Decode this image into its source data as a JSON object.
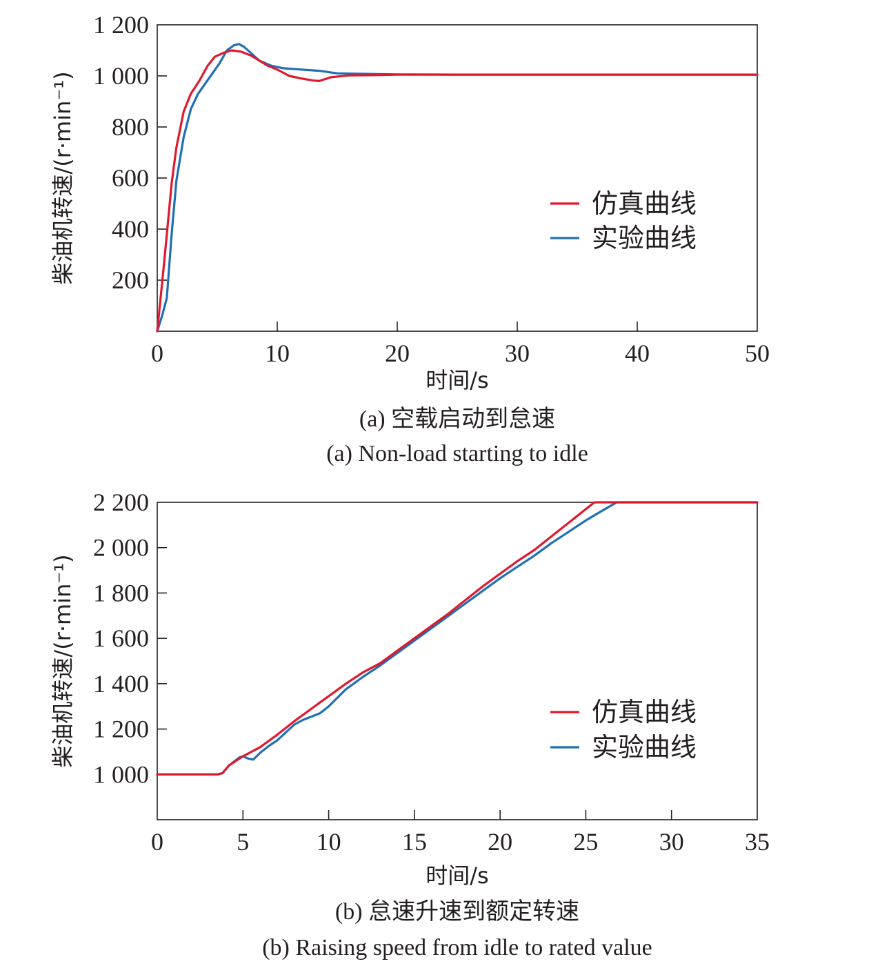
{
  "colors": {
    "sim": "#e0182d",
    "exp": "#1f6fb5"
  },
  "chart_data": [
    {
      "type": "line",
      "xlabel": "时间/s",
      "ylabel": "柴油机转速/(r·min⁻¹)",
      "xlim": [
        0,
        50
      ],
      "ylim": [
        0,
        1200
      ],
      "xticks": [
        0,
        10,
        20,
        30,
        40,
        50
      ],
      "xtick_labels": [
        "0",
        "10",
        "20",
        "30",
        "40",
        "50"
      ],
      "yticks": [
        200,
        400,
        600,
        800,
        1000,
        1200
      ],
      "ytick_labels": [
        "200",
        "400",
        "600",
        "800",
        "1 000",
        "1 200"
      ],
      "legend_position": "right",
      "caption_cn": "(a) 空载启动到怠速",
      "caption_en": "(a) Non-load starting to idle",
      "series": [
        {
          "name": "仿真曲线",
          "color": "#e0182d",
          "x": [
            0,
            0.6,
            1.2,
            1.6,
            2.2,
            2.8,
            3.5,
            4.2,
            4.8,
            5.5,
            6.2,
            7.0,
            7.8,
            8.5,
            9.2,
            10.0,
            11.0,
            12.0,
            13.0,
            13.5,
            14.5,
            16.0,
            18.0,
            20.0,
            25.0,
            30.0,
            40.0,
            50.0
          ],
          "y": [
            0,
            280,
            580,
            720,
            860,
            930,
            980,
            1040,
            1075,
            1090,
            1100,
            1095,
            1080,
            1060,
            1040,
            1025,
            1000,
            990,
            982,
            980,
            995,
            1002,
            1003,
            1005,
            1005,
            1005,
            1005,
            1005
          ]
        },
        {
          "name": "实验曲线",
          "color": "#1f6fb5",
          "x": [
            0,
            0.4,
            0.8,
            1.2,
            1.6,
            2.2,
            2.8,
            3.4,
            4.0,
            4.6,
            5.2,
            5.8,
            6.4,
            6.8,
            7.2,
            7.8,
            8.5,
            9.5,
            10.5,
            12.0,
            13.5,
            15.0,
            17.0,
            20.0,
            25.0,
            30.0,
            40.0,
            50.0
          ],
          "y": [
            0,
            60,
            130,
            380,
            590,
            760,
            870,
            930,
            970,
            1010,
            1050,
            1100,
            1120,
            1125,
            1115,
            1090,
            1060,
            1040,
            1030,
            1025,
            1020,
            1010,
            1008,
            1006,
            1005,
            1005,
            1005,
            1005
          ]
        }
      ]
    },
    {
      "type": "line",
      "xlabel": "时间/s",
      "ylabel": "柴油机转速/(r·min⁻¹)",
      "xlim": [
        0,
        35
      ],
      "ylim": [
        800,
        2200
      ],
      "xticks": [
        0,
        5,
        10,
        15,
        20,
        25,
        30,
        35
      ],
      "xtick_labels": [
        "0",
        "5",
        "10",
        "15",
        "20",
        "25",
        "30",
        "35"
      ],
      "yticks": [
        1000,
        1200,
        1400,
        1600,
        1800,
        2000,
        2200
      ],
      "ytick_labels": [
        "1 000",
        "1 200",
        "1 400",
        "1 600",
        "1 800",
        "2 000",
        "2 200"
      ],
      "legend_position": "right",
      "caption_cn": "(b) 怠速升速到额定转速",
      "caption_en": "(b) Raising speed from idle to rated value",
      "series": [
        {
          "name": "仿真曲线",
          "color": "#e0182d",
          "x": [
            0,
            3.5,
            3.8,
            4.2,
            5.0,
            6.0,
            7.0,
            8.0,
            9.0,
            10.0,
            11.0,
            12.0,
            13.0,
            14.0,
            15.0,
            16.0,
            17.0,
            18.0,
            19.0,
            20.0,
            21.0,
            22.0,
            23.0,
            24.0,
            25.0,
            25.5,
            26.0,
            27.0,
            30.0,
            35.0
          ],
          "y": [
            1000,
            1000,
            1005,
            1040,
            1080,
            1120,
            1175,
            1235,
            1290,
            1345,
            1400,
            1450,
            1490,
            1545,
            1600,
            1655,
            1710,
            1770,
            1830,
            1885,
            1940,
            1990,
            2050,
            2110,
            2170,
            2200,
            2200,
            2200,
            2200,
            2200
          ]
        },
        {
          "name": "实验曲线",
          "color": "#1f6fb5",
          "x": [
            0,
            3.5,
            3.8,
            4.2,
            4.8,
            5.0,
            5.3,
            5.6,
            6.0,
            6.5,
            7.0,
            7.5,
            8.0,
            8.5,
            9.0,
            9.5,
            10.0,
            11.0,
            12.0,
            13.0,
            14.0,
            15.0,
            16.0,
            17.0,
            18.0,
            19.0,
            20.0,
            21.0,
            22.0,
            23.0,
            24.0,
            25.0,
            26.0,
            26.8,
            27.5,
            30.0,
            35.0
          ],
          "y": [
            1000,
            1000,
            1005,
            1040,
            1075,
            1080,
            1070,
            1065,
            1095,
            1125,
            1150,
            1185,
            1220,
            1240,
            1255,
            1270,
            1300,
            1375,
            1430,
            1480,
            1535,
            1590,
            1645,
            1700,
            1755,
            1810,
            1865,
            1915,
            1965,
            2020,
            2070,
            2120,
            2165,
            2200,
            2200,
            2200,
            2200
          ]
        }
      ]
    }
  ]
}
